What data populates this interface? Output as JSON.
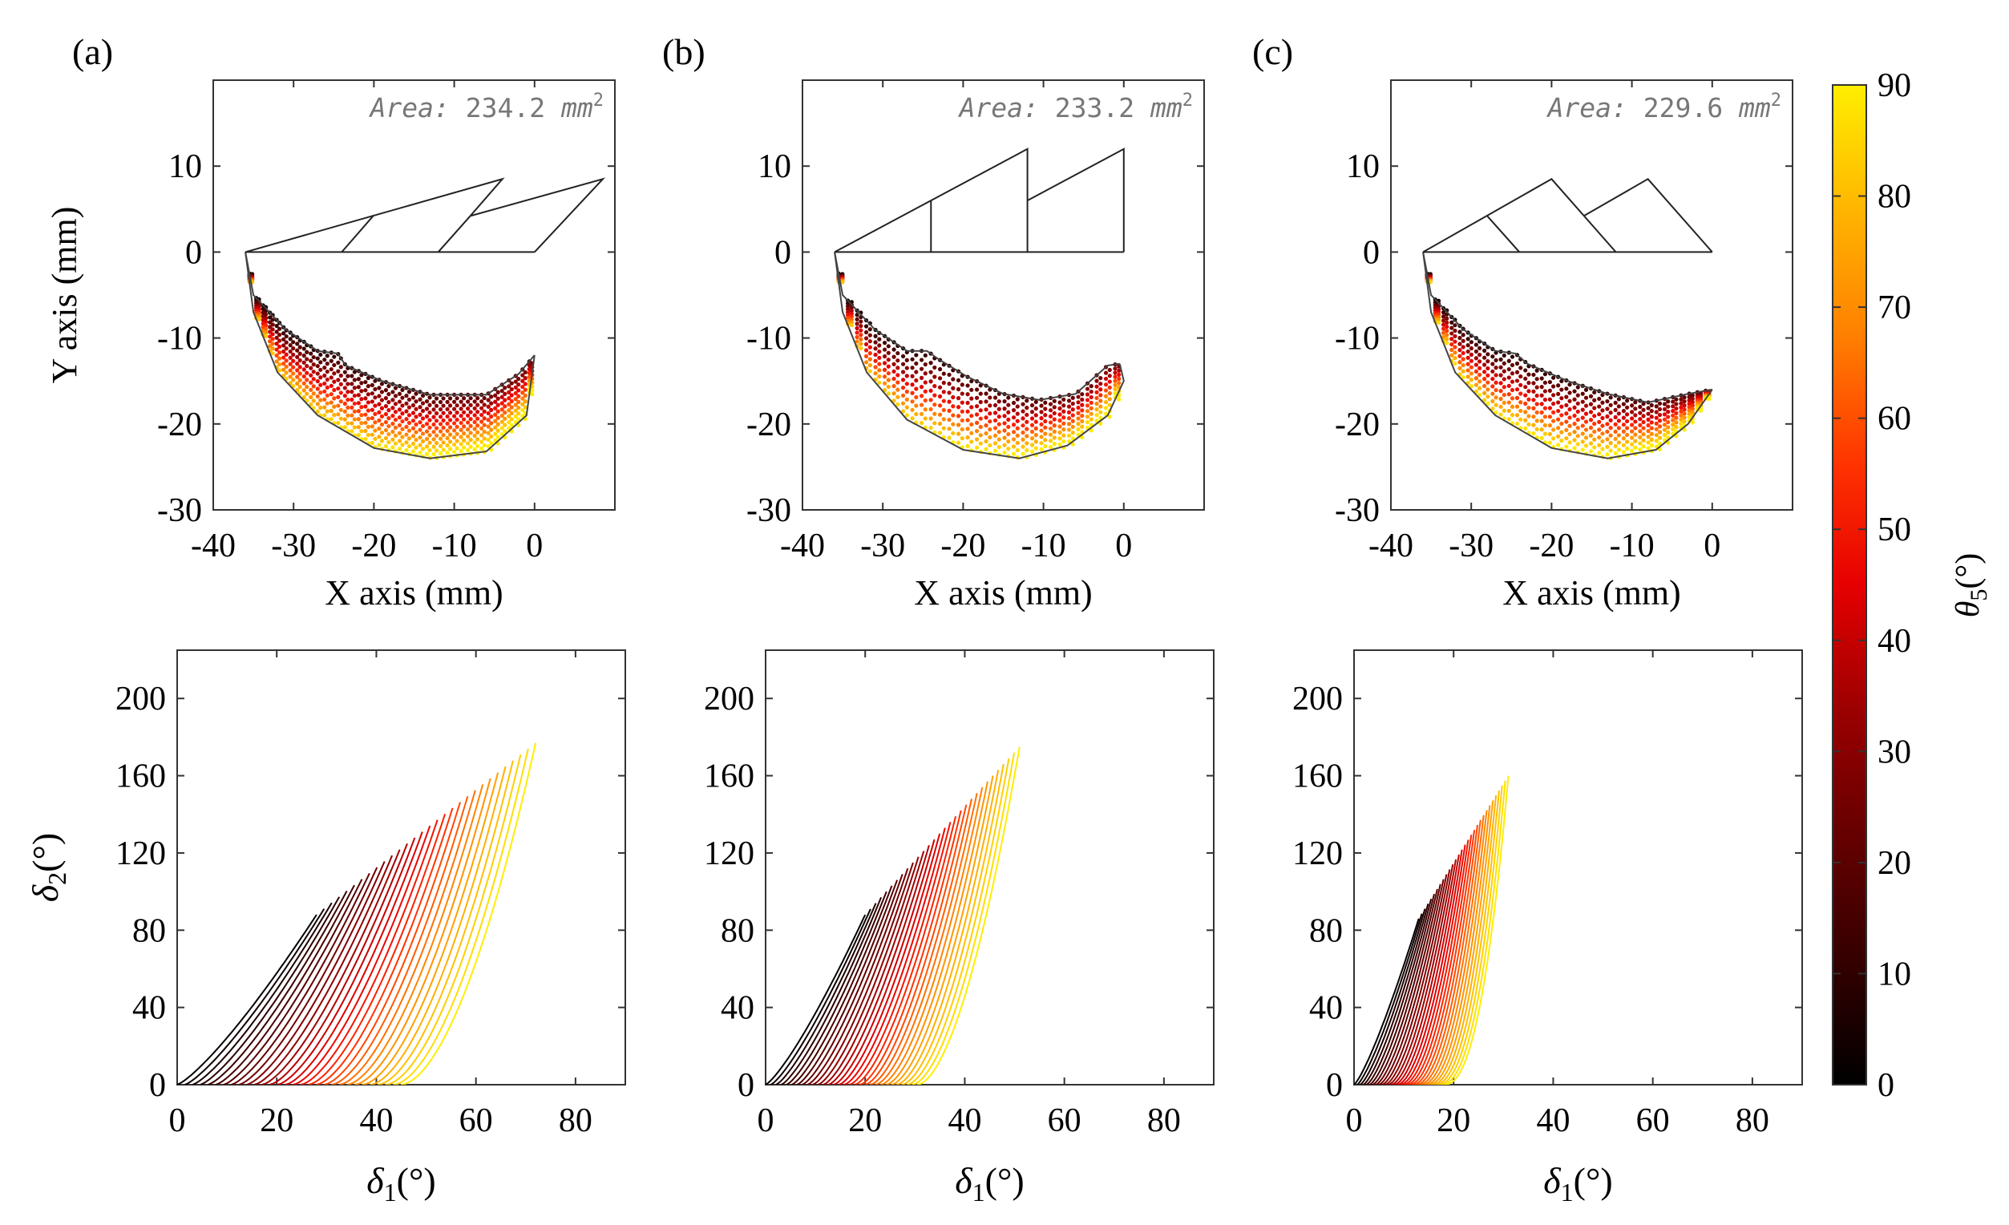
{
  "colorbar": {
    "label_sym": "θ",
    "label_sub": "5",
    "label_unit": "(°)",
    "min": 0,
    "max": 90,
    "ticks": [
      0,
      10,
      20,
      30,
      40,
      50,
      60,
      70,
      80,
      90
    ],
    "colormap": "hot: black-dark red-red-orange-yellow"
  },
  "chart_data": [
    {
      "panel": "(a)",
      "type": "scatter",
      "ylabel": "Y axis (mm)",
      "xlabel": "X axis (mm)",
      "area_label": "Area:",
      "area_value": "234.2",
      "area_unit": "mm",
      "xlim": [
        -40,
        10
      ],
      "ylim": [
        -30,
        20
      ],
      "xticks": [
        -40,
        -30,
        -20,
        -10,
        0
      ],
      "yticks": [
        -30,
        -20,
        -10,
        0,
        10
      ],
      "linkage_polylines": [
        [
          [
            -36,
            0
          ],
          [
            0,
            0
          ]
        ],
        [
          [
            -36,
            0
          ],
          [
            -4,
            8.5
          ],
          [
            -8,
            4.2
          ]
        ],
        [
          [
            -8,
            4.2
          ],
          [
            8.5,
            8.5
          ],
          [
            0,
            0
          ]
        ],
        [
          [
            -24,
            0
          ],
          [
            -20,
            4.3
          ]
        ],
        [
          [
            -12,
            0
          ],
          [
            -8,
            4.2
          ]
        ]
      ],
      "workspace_outline": {
        "outer": [
          [
            -36,
            0
          ],
          [
            -35,
            -7
          ],
          [
            -32,
            -14
          ],
          [
            -27,
            -19
          ],
          [
            -20,
            -22.8
          ],
          [
            -13,
            -24
          ],
          [
            -6,
            -23.2
          ],
          [
            -1,
            -19
          ],
          [
            0,
            -12
          ]
        ],
        "inner": [
          [
            -36,
            0
          ],
          [
            -35,
            -5
          ],
          [
            -31,
            -9
          ],
          [
            -27,
            -11.5
          ],
          [
            -24.5,
            -11.8
          ],
          [
            -23.5,
            -13.2
          ],
          [
            -19,
            -15
          ],
          [
            -13,
            -16.6
          ],
          [
            -6,
            -16.6
          ],
          [
            -2,
            -14.2
          ],
          [
            0,
            -12
          ]
        ]
      }
    },
    {
      "panel": "(b)",
      "type": "scatter",
      "xlabel": "X axis (mm)",
      "area_label": "Area:",
      "area_value": "233.2",
      "area_unit": "mm",
      "xlim": [
        -40,
        10
      ],
      "ylim": [
        -30,
        20
      ],
      "xticks": [
        -40,
        -30,
        -20,
        -10,
        0
      ],
      "yticks": [
        -30,
        -20,
        -10,
        0,
        10
      ],
      "linkage_polylines": [
        [
          [
            -36,
            0
          ],
          [
            0,
            0
          ]
        ],
        [
          [
            -36,
            0
          ],
          [
            -12,
            12
          ],
          [
            -12,
            0
          ]
        ],
        [
          [
            -12,
            6
          ],
          [
            0,
            12
          ],
          [
            0,
            0
          ]
        ],
        [
          [
            -24,
            0
          ],
          [
            -24,
            6
          ]
        ]
      ],
      "workspace_outline": {
        "outer": [
          [
            -36,
            0
          ],
          [
            -35,
            -7
          ],
          [
            -32,
            -14
          ],
          [
            -27,
            -19.5
          ],
          [
            -20,
            -23
          ],
          [
            -13,
            -24
          ],
          [
            -7,
            -22.5
          ],
          [
            -2,
            -19
          ],
          [
            0,
            -15
          ],
          [
            -0.5,
            -13
          ]
        ],
        "inner": [
          [
            -36,
            0
          ],
          [
            -35,
            -5
          ],
          [
            -31,
            -9
          ],
          [
            -27,
            -11.5
          ],
          [
            -24.5,
            -11.5
          ],
          [
            -23,
            -12.5
          ],
          [
            -19.5,
            -14.5
          ],
          [
            -15,
            -16.5
          ],
          [
            -10.5,
            -17.2
          ],
          [
            -6,
            -16.5
          ],
          [
            -2,
            -13.2
          ],
          [
            -0.5,
            -13
          ]
        ]
      }
    },
    {
      "panel": "(c)",
      "type": "scatter",
      "xlabel": "X axis (mm)",
      "area_label": "Area:",
      "area_value": "229.6",
      "area_unit": "mm",
      "xlim": [
        -40,
        10
      ],
      "ylim": [
        -30,
        20
      ],
      "xticks": [
        -40,
        -30,
        -20,
        -10,
        0
      ],
      "yticks": [
        -30,
        -20,
        -10,
        0,
        10
      ],
      "linkage_polylines": [
        [
          [
            -36,
            0
          ],
          [
            0,
            0
          ]
        ],
        [
          [
            -36,
            0
          ],
          [
            -20,
            8.5
          ],
          [
            -12,
            0
          ]
        ],
        [
          [
            -16,
            4.2
          ],
          [
            -8,
            8.5
          ],
          [
            0,
            0
          ]
        ],
        [
          [
            -28,
            4.2
          ],
          [
            -24,
            0
          ]
        ]
      ],
      "workspace_outline": {
        "outer": [
          [
            -36,
            0
          ],
          [
            -35,
            -7
          ],
          [
            -32,
            -14
          ],
          [
            -27,
            -19
          ],
          [
            -20,
            -22.8
          ],
          [
            -13,
            -24
          ],
          [
            -7,
            -23
          ],
          [
            -3,
            -20
          ],
          [
            0,
            -16
          ]
        ],
        "inner": [
          [
            -36,
            0
          ],
          [
            -35,
            -5
          ],
          [
            -31,
            -9
          ],
          [
            -27,
            -11.5
          ],
          [
            -24.5,
            -11.8
          ],
          [
            -23,
            -13
          ],
          [
            -18,
            -15
          ],
          [
            -13,
            -16.5
          ],
          [
            -8,
            -17.5
          ],
          [
            -3,
            -16.5
          ],
          [
            0,
            -16
          ]
        ]
      }
    },
    {
      "panel": "(a) bottom",
      "type": "line",
      "xlabel_sym": "δ",
      "xlabel_sub": "1",
      "xlabel_unit": "(°)",
      "ylabel_sym": "δ",
      "ylabel_sub": "2",
      "ylabel_unit": "(°)",
      "xlim": [
        0,
        90
      ],
      "ylim": [
        0,
        225
      ],
      "xticks": [
        0,
        20,
        40,
        60,
        80
      ],
      "yticks": [
        0,
        40,
        80,
        120,
        160,
        200
      ],
      "series_model": {
        "count": 30,
        "theta5_range": [
          0,
          90
        ],
        "start_end": [
          [
            0,
            0
          ],
          [
            28,
            88
          ]
        ],
        "last_end": [
          72,
          177
        ],
        "spacing": 1.55
      }
    },
    {
      "panel": "(b) bottom",
      "type": "line",
      "xlabel_sym": "δ",
      "xlabel_sub": "1",
      "xlabel_unit": "(°)",
      "xlim": [
        0,
        90
      ],
      "ylim": [
        0,
        225
      ],
      "xticks": [
        0,
        20,
        40,
        60,
        80
      ],
      "yticks": [
        0,
        40,
        80,
        120,
        160,
        200
      ],
      "series_model": {
        "count": 30,
        "theta5_range": [
          0,
          90
        ],
        "start_end": [
          [
            0,
            0
          ],
          [
            20,
            88
          ]
        ],
        "last_end": [
          51,
          175
        ],
        "spacing": 1.05
      }
    },
    {
      "panel": "(c) bottom",
      "type": "line",
      "xlabel_sym": "δ",
      "xlabel_sub": "1",
      "xlabel_unit": "(°)",
      "xlim": [
        0,
        90
      ],
      "ylim": [
        0,
        225
      ],
      "xticks": [
        0,
        20,
        40,
        60,
        80
      ],
      "yticks": [
        0,
        40,
        80,
        120,
        160,
        200
      ],
      "series_model": {
        "count": 30,
        "theta5_range": [
          0,
          90
        ],
        "start_end": [
          [
            0,
            0
          ],
          [
            13,
            86
          ]
        ],
        "last_end": [
          31,
          160
        ],
        "spacing": 0.62
      }
    }
  ]
}
